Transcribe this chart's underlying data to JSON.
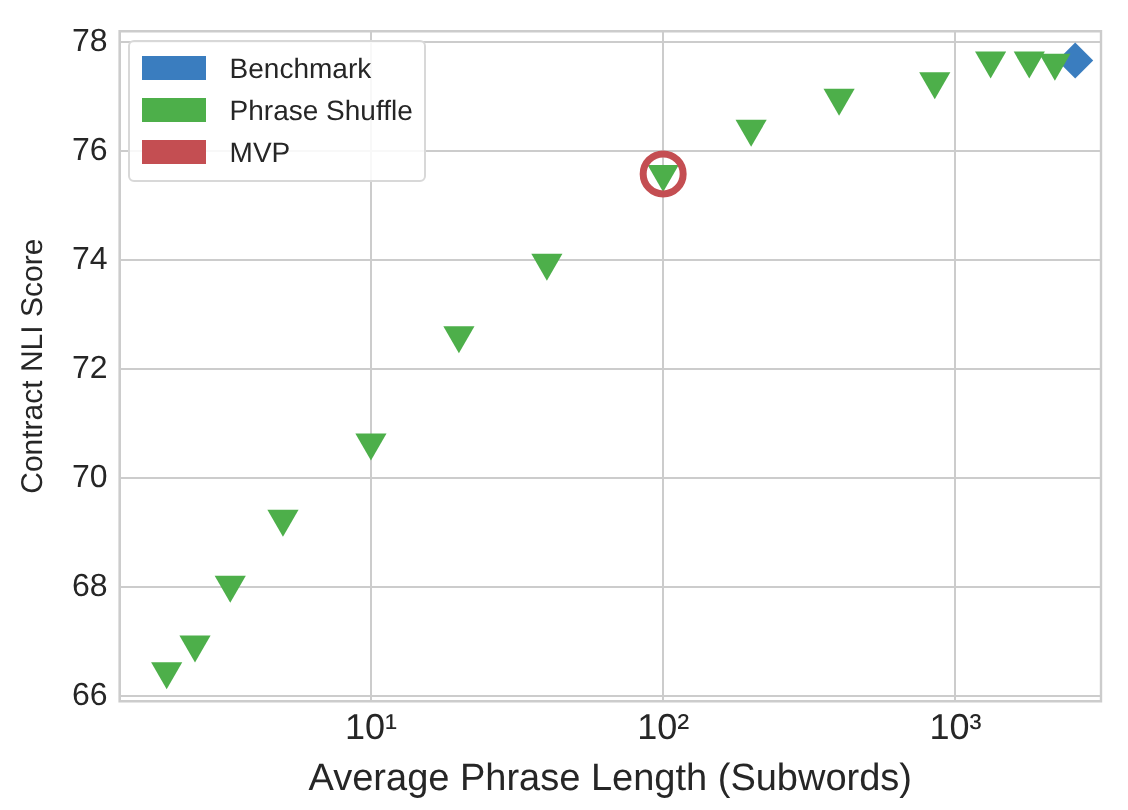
{
  "chart_data": {
    "type": "scatter",
    "xlabel": "Average Phrase Length (Subwords)",
    "ylabel": "Contract NLI Score",
    "log": "x",
    "grid": true,
    "legend": "top left",
    "xlim": [
      1.38,
      3150
    ],
    "xticks": [
      {
        "value": 10,
        "label": "10¹"
      },
      {
        "value": 100,
        "label": "10²"
      },
      {
        "value": 1000,
        "label": "10³"
      }
    ],
    "ylim": [
      65.9,
      78.2
    ],
    "yticks": [
      66,
      68,
      70,
      72,
      74,
      76,
      78
    ],
    "series": [
      {
        "name": "Benchmark",
        "color": "#3a7dbf",
        "marker": "diamond",
        "x": [
          2570
        ],
        "values": [
          77.66
        ]
      },
      {
        "name": "Phrase Shuffle",
        "color": "#4daf4a",
        "marker": "triangle",
        "x": [
          2,
          2.5,
          3.3,
          5,
          10,
          20,
          40,
          100,
          200,
          400,
          850,
          1320,
          1790,
          2190
        ],
        "values": [
          66.45,
          66.94,
          68.04,
          69.25,
          70.65,
          72.62,
          73.95,
          75.58,
          76.41,
          76.98,
          77.28,
          77.66,
          77.66,
          77.62
        ]
      },
      {
        "name": "MVP",
        "color": "#c44e52",
        "marker": "circle",
        "x": [
          100
        ],
        "values": [
          75.58
        ]
      }
    ]
  }
}
